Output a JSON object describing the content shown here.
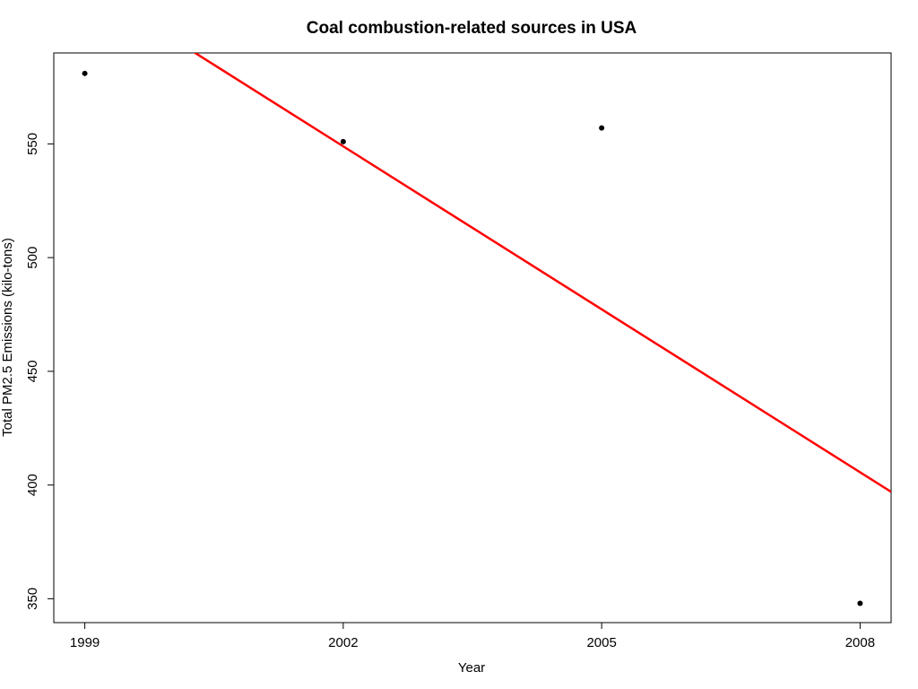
{
  "chart_data": {
    "type": "scatter",
    "title": "Coal combustion-related sources in USA",
    "xlabel": "Year",
    "ylabel": "Total PM2.5 Emissions (kilo-tons)",
    "x_ticks": [
      1999,
      2002,
      2005,
      2008
    ],
    "y_ticks": [
      350,
      400,
      450,
      500,
      550
    ],
    "xlim": [
      1998.64,
      2008.36
    ],
    "ylim": [
      339.5,
      590
    ],
    "grid": false,
    "legend": "none",
    "series": [
      {
        "x": [
          1999,
          2002,
          2005,
          2008
        ],
        "y": [
          581,
          551,
          557,
          348
        ],
        "point_color": "#000000"
      }
    ],
    "trend_line": {
      "type": "linear-fit",
      "color": "#ff0000",
      "x": [
        1999,
        2008.36
      ],
      "y": [
        620.6,
        397
      ]
    }
  }
}
